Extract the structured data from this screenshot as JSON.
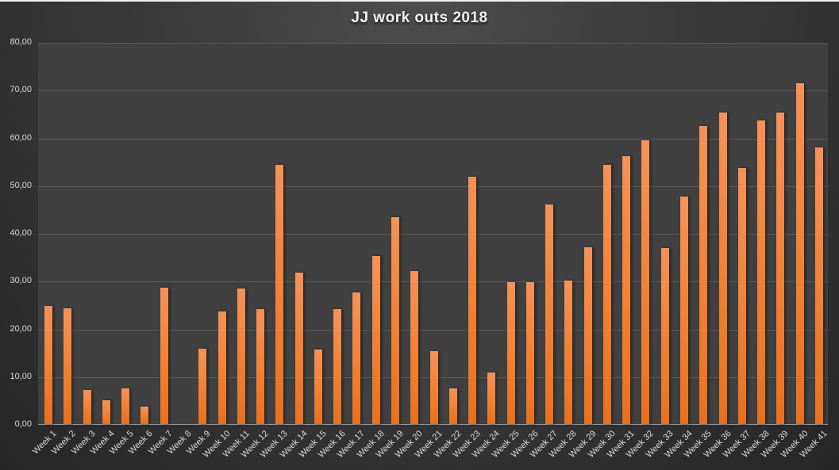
{
  "chart_data": {
    "type": "bar",
    "title": "JJ work outs 2018",
    "xlabel": "",
    "ylabel": "",
    "ylim": [
      0,
      80
    ],
    "yticks": [
      "0,00",
      "10,00",
      "20,00",
      "30,00",
      "40,00",
      "50,00",
      "60,00",
      "70,00",
      "80,00"
    ],
    "grid": true,
    "legend": "none",
    "bar_color": "#f28032",
    "categories": [
      "Week 1",
      "Week 2",
      "Week 3",
      "Week 4",
      "Week 5",
      "Week 6",
      "Week 7",
      "Week 8",
      "Week 9",
      "Week 10",
      "Week 11",
      "Week 12",
      "Week 13",
      "Week 14",
      "Week 15",
      "Week 16",
      "Week 17",
      "Week 18",
      "Week 19",
      "Week 20",
      "Week 21",
      "Week 22",
      "Week 23",
      "Week 24",
      "Week 25",
      "Week 26",
      "Week 27",
      "Week 28",
      "Week 29",
      "Week 30",
      "Week 31",
      "Week 32",
      "Week 33",
      "Week 34",
      "Week 35",
      "Week 36",
      "Week 37",
      "Week 38",
      "Week 39",
      "Week 40",
      "Week 41"
    ],
    "values": [
      24.7,
      24.3,
      7.2,
      5.0,
      7.5,
      3.7,
      28.5,
      0,
      15.7,
      23.5,
      28.3,
      24.0,
      54.2,
      31.7,
      15.6,
      24.0,
      27.5,
      35.2,
      43.3,
      32.0,
      15.2,
      7.5,
      51.8,
      10.8,
      29.7,
      29.7,
      46.0,
      30.0,
      37.0,
      54.3,
      56.1,
      59.4,
      36.8,
      47.6,
      62.4,
      65.3,
      53.6,
      63.6,
      65.3,
      71.3,
      57.9
    ]
  }
}
